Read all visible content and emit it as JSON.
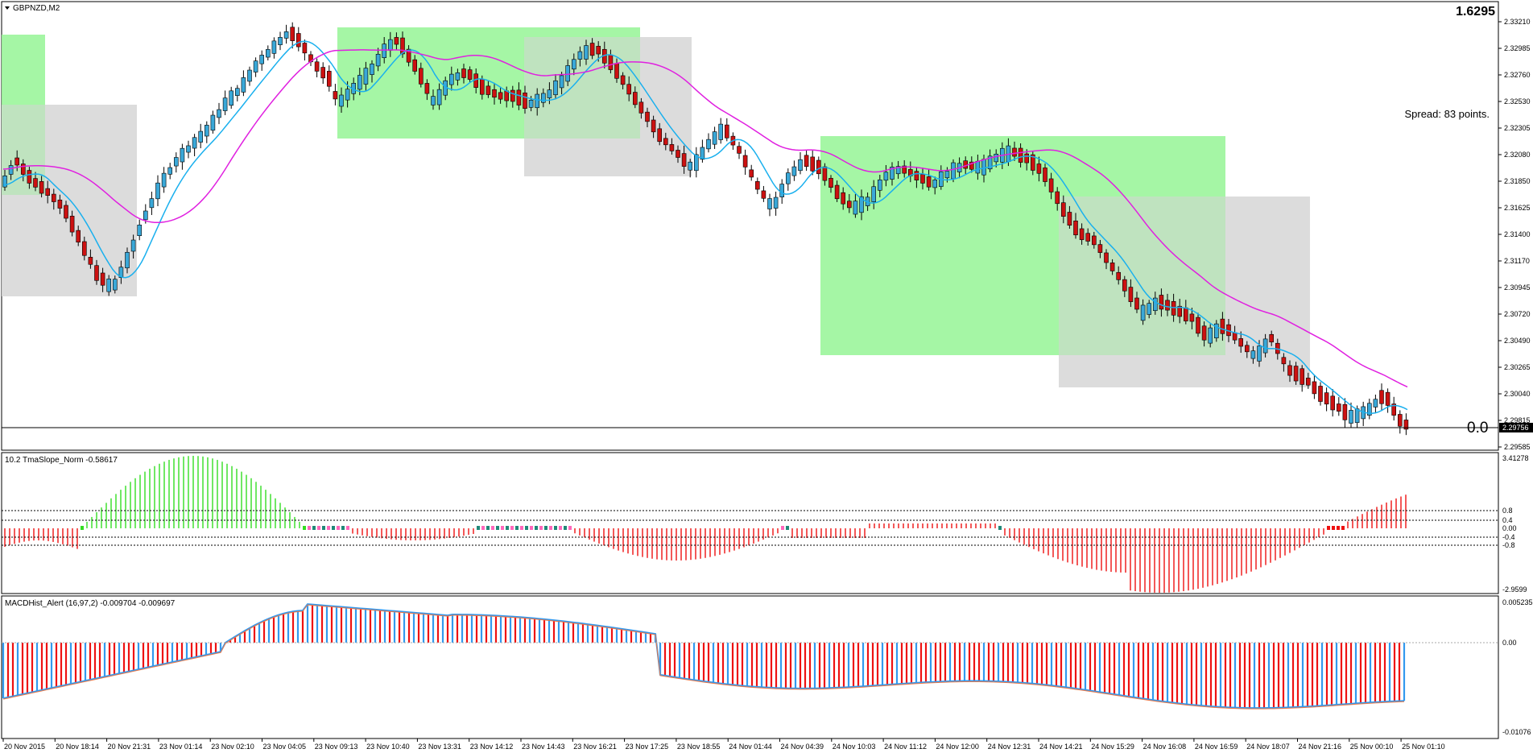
{
  "symbol_label": "GBPNZD,M2",
  "top_right_value": "1.6295",
  "spread_text": "Spread: 83 points.",
  "hline_label": "0.0",
  "current_price_tag": "2.29756",
  "main_axis": [
    "2.33210",
    "2.32985",
    "2.32760",
    "2.32530",
    "2.32305",
    "2.32080",
    "2.31850",
    "2.31625",
    "2.31400",
    "2.31170",
    "2.30945",
    "2.30720",
    "2.30490",
    "2.30265",
    "2.30040",
    "2.29815",
    "2.29585"
  ],
  "tma_label": "10.2 TmaSlope_Norm -0.58617",
  "tma_axis": [
    "3.41278",
    "0.8",
    "0.4",
    "0.00",
    "-0.4",
    "-0.8",
    "-2.9599"
  ],
  "macd_label": "MACDHist_Alert (16,97,2)  -0.009704 -0.009697",
  "macd_axis": [
    "0.005235",
    "0.00",
    "-0.01076"
  ],
  "time_axis": [
    "20 Nov 2015",
    "20 Nov 18:14",
    "20 Nov 21:31",
    "23 Nov 01:14",
    "23 Nov 02:10",
    "23 Nov 04:05",
    "23 Nov 09:13",
    "23 Nov 10:40",
    "23 Nov 13:31",
    "23 Nov 14:12",
    "23 Nov 14:43",
    "23 Nov 16:21",
    "23 Nov 17:25",
    "23 Nov 18:55",
    "24 Nov 01:44",
    "24 Nov 04:39",
    "24 Nov 10:03",
    "24 Nov 11:12",
    "24 Nov 12:00",
    "24 Nov 12:31",
    "24 Nov 14:21",
    "24 Nov 15:29",
    "24 Nov 16:08",
    "24 Nov 16:59",
    "24 Nov 18:07",
    "24 Nov 21:16",
    "25 Nov 00:10",
    "25 Nov 01:10"
  ],
  "colors": {
    "bull": "#3aa8d8",
    "bear": "#cc1111",
    "ma_fast": "#1ab0ee",
    "ma_slow": "#e020e0",
    "zone_green": "#9bf59b",
    "zone_gray": "#d8d8d8",
    "tma_up": "#33dd22",
    "tma_down": "#ee1111",
    "tma_pink": "#ff66bb",
    "tma_teal": "#208878",
    "macd_pos": "#3399ee",
    "macd_neg": "#ee1111"
  }
}
